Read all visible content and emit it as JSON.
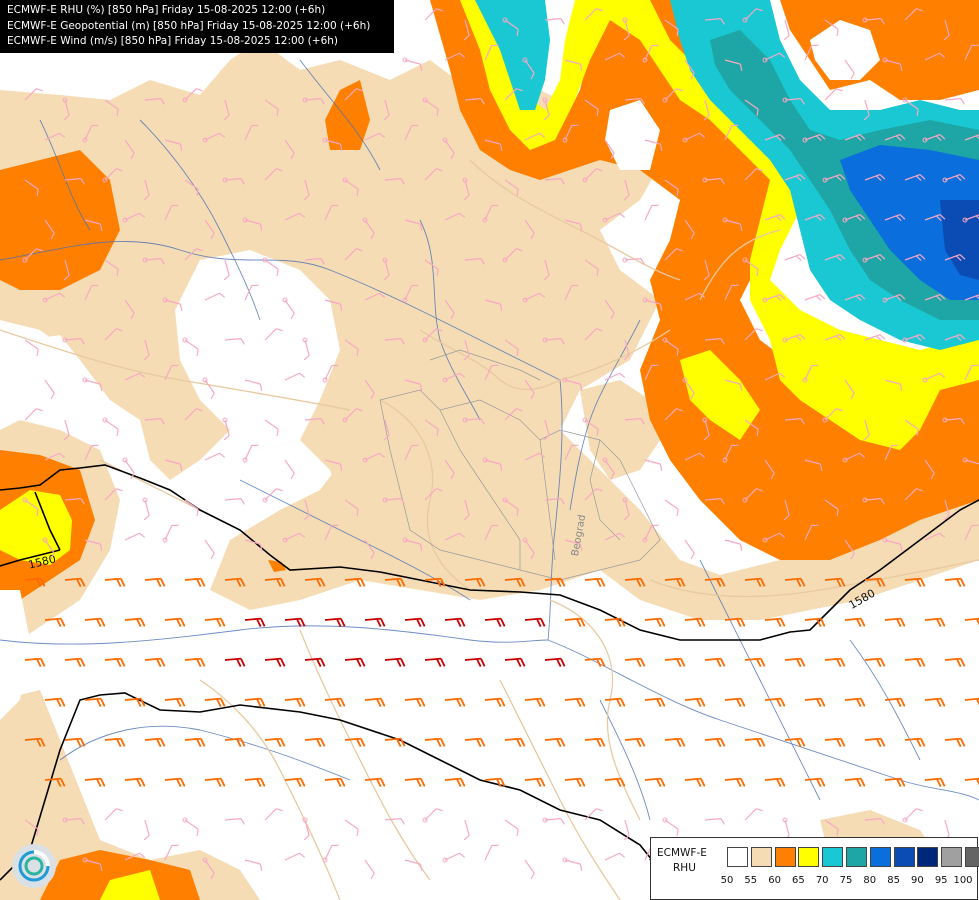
{
  "header": {
    "lines": [
      "ECMWF-E RHU (%) [850 hPa] Friday 15-08-2025 12:00 (+6h)",
      "ECMWF-E Geopotential (m) [850 hPa] Friday 15-08-2025 12:00 (+6h)",
      "ECMWF-E Wind (m/s) [850 hPa] Friday 15-08-2025 12:00 (+6h)"
    ]
  },
  "colorbar": {
    "model": "ECMWF-E",
    "variable": "RHU",
    "unit": "%",
    "ticks": [
      "50",
      "55",
      "60",
      "65",
      "70",
      "75",
      "80",
      "85",
      "90",
      "95",
      "100"
    ],
    "colors": [
      "#ffffff",
      "#f5dcb4",
      "#ff8000",
      "#ffff00",
      "#19c8d2",
      "#1ea5a5",
      "#0a6edc",
      "#0a4bb4",
      "#00287a",
      "#a0a0a0",
      "#646464"
    ]
  },
  "contours": {
    "geopotential_labels": [
      "1580",
      "1580",
      "1580"
    ]
  },
  "map": {
    "city_label": "Beograd",
    "colors": {
      "rhu_55": "#f5dcb4",
      "rhu_60": "#ff8000",
      "rhu_65": "#ffff00",
      "rhu_70": "#19c8d2",
      "rhu_75": "#1ea5a5",
      "rhu_80": "#0a6edc",
      "barb_light": "#f8a8c4",
      "barb_orange": "#ff6a00",
      "barb_red": "#c80000",
      "rivers": "#4a6fb5",
      "borders": "#e8c9a0",
      "contour": "#000000"
    }
  }
}
